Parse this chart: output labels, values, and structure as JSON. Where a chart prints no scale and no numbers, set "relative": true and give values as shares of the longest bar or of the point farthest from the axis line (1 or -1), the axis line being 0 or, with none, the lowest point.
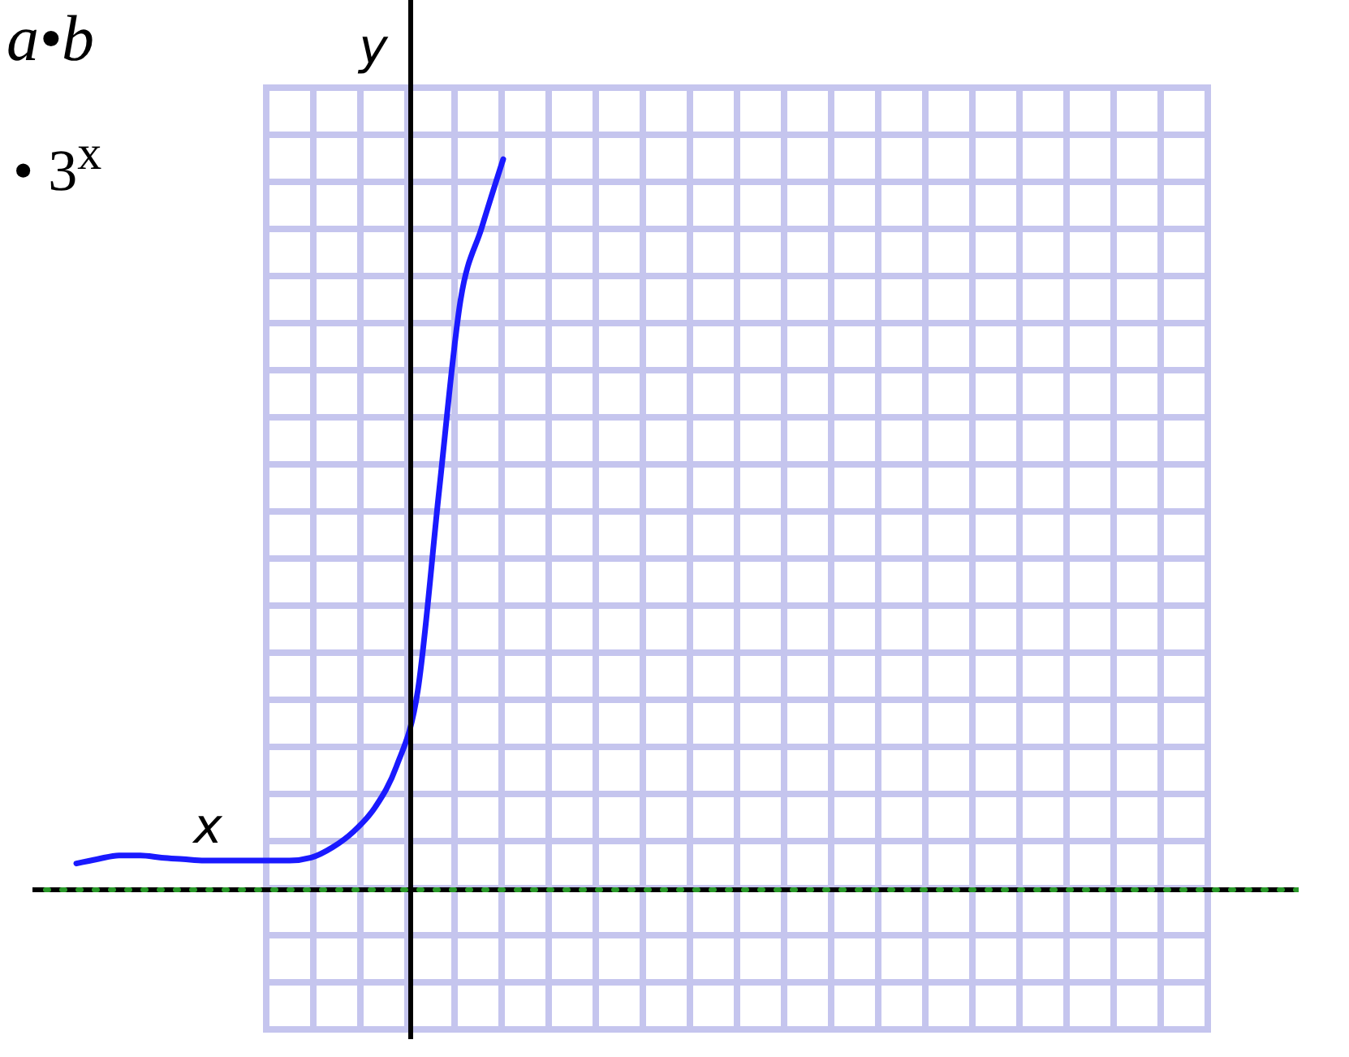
{
  "chart_data": {
    "type": "line",
    "title": "a•b",
    "subtitle": "• 3$^{x}$",
    "xlabel": "x",
    "ylabel": "y",
    "relative": true,
    "grid": true,
    "categories": [
      null,
      null,
      null,
      null,
      null,
      null,
      null,
      null,
      null,
      null,
      null,
      null,
      null,
      null,
      null,
      null,
      null,
      null,
      null,
      null,
      null
    ],
    "series": [
      {
        "color": "#1a1aff",
        "values": [
          0.036,
          0.042,
          0.047,
          0.047,
          0.044,
          0.042,
          0.04,
          0.04,
          0.04,
          0.04,
          0.04,
          0.044,
          0.058,
          0.08,
          0.113,
          0.169,
          0.273,
          0.547,
          0.807,
          0.907,
          1
        ]
      }
    ],
    "ref_lines": [
      {
        "axis": "y",
        "value": 0,
        "color": "#2a9a2a",
        "line_style": "dotted"
      }
    ]
  }
}
